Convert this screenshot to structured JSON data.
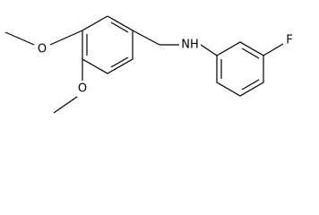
{
  "atoms": [
    {
      "label": "O"
    },
    {
      "label": "O"
    },
    {
      "label": "NH"
    },
    {
      "label": "F"
    }
  ]
}
